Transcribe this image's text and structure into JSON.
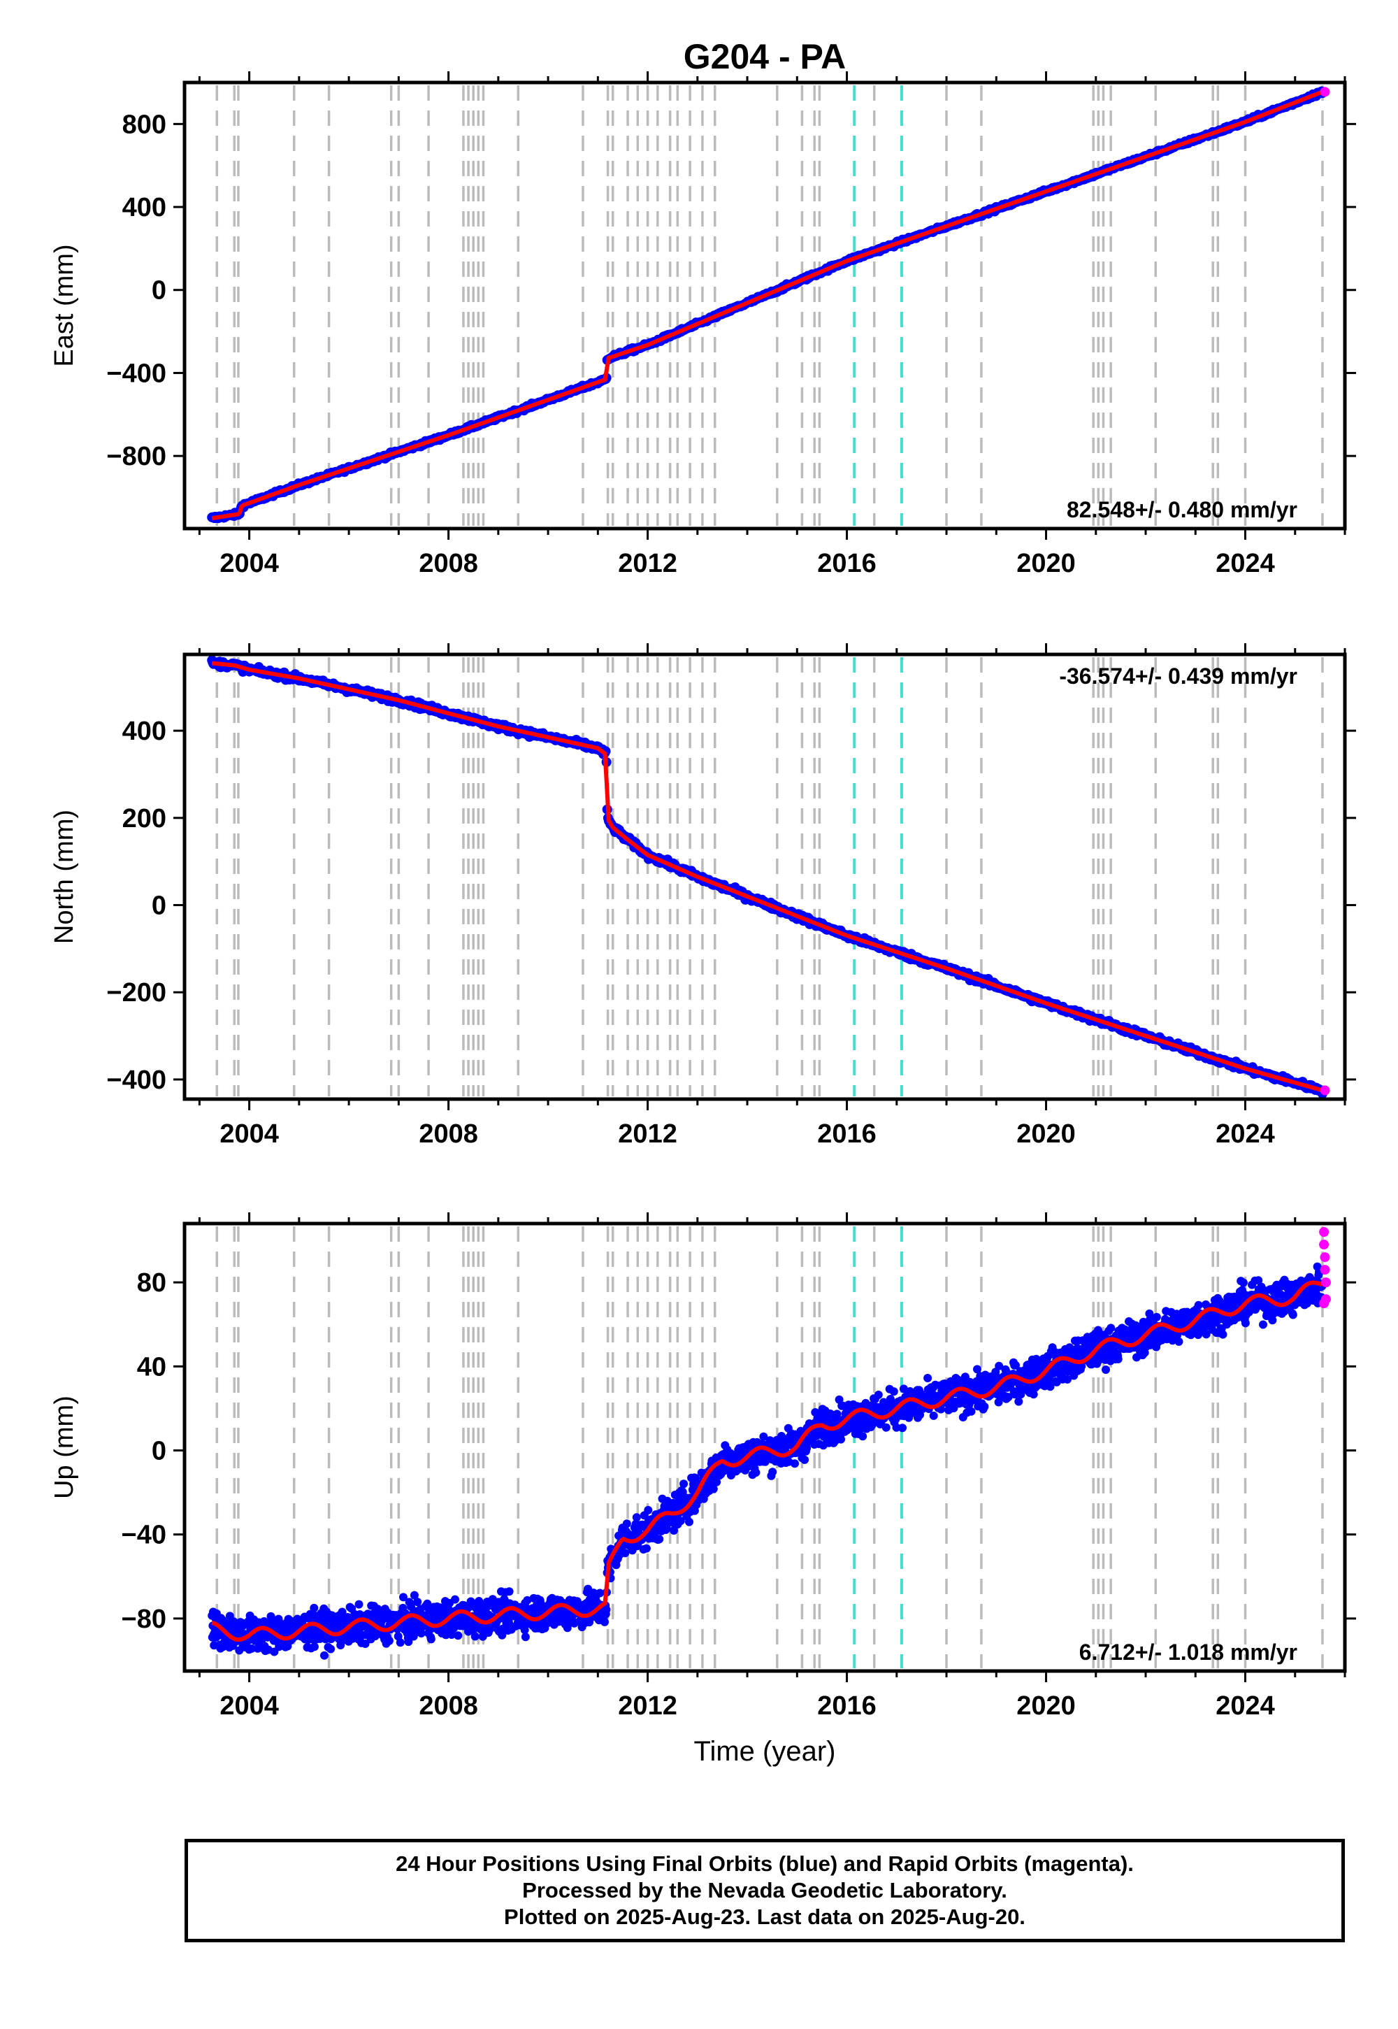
{
  "figure": {
    "title": "G204 - PA",
    "xlabel": "Time (year)",
    "footer": [
      "24 Hour Positions Using Final Orbits (blue) and Rapid Orbits (magenta).",
      "Processed by the Nevada Geodetic Laboratory.",
      "Plotted on 2025-Aug-23. Last data on 2025-Aug-20."
    ]
  },
  "colors": {
    "final_orbit_points": "#0000ff",
    "rapid_orbit_points": "#ff00ff",
    "model_line": "#ff0000",
    "equipment_change_lines": "#bbbbbb",
    "earthquake_lines": "#40e0d0"
  },
  "chart_data": [
    {
      "type": "scatter",
      "ylabel": "East (mm)",
      "xlim": [
        2002.7,
        2026.0
      ],
      "ylim": [
        -1150,
        1000
      ],
      "xticks": [
        2004,
        2008,
        2012,
        2016,
        2020,
        2024
      ],
      "yticks": [
        -800,
        -400,
        0,
        400,
        800
      ],
      "rate_label": "82.548+/- 0.480 mm/yr",
      "rate_position": "bottom-right",
      "grid": false,
      "series": [
        {
          "values_x": [
            2003.25,
            2003.8,
            2003.85,
            2005.0,
            2008.0,
            2011.17,
            2011.19,
            2012.0,
            2016.0,
            2020.0,
            2024.0,
            2025.55
          ],
          "values_y": [
            -1100,
            -1080,
            -1040,
            -940,
            -700,
            -430,
            -330,
            -265,
            140,
            475,
            810,
            955
          ]
        }
      ],
      "rapid_points": [
        [
          2025.6,
          955
        ]
      ],
      "spread_mm": 6,
      "equipment_change_years": [
        2003.35,
        2003.7,
        2003.78,
        2004.9,
        2005.6,
        2006.85,
        2007.0,
        2007.6,
        2008.3,
        2008.4,
        2008.5,
        2008.6,
        2008.7,
        2009.4,
        2010.7,
        2011.2,
        2011.3,
        2011.6,
        2011.8,
        2012.0,
        2012.2,
        2012.45,
        2012.6,
        2012.85,
        2013.1,
        2013.35,
        2014.6,
        2015.1,
        2015.35,
        2015.45,
        2016.55,
        2018.0,
        2018.7,
        2020.95,
        2021.05,
        2021.15,
        2021.3,
        2022.2,
        2023.35,
        2023.45,
        2024.0,
        2025.55
      ],
      "earthquake_years": [
        2016.15,
        2017.1
      ]
    },
    {
      "type": "scatter",
      "ylabel": "North (mm)",
      "xlim": [
        2002.7,
        2026.0
      ],
      "ylim": [
        -445,
        575
      ],
      "xticks": [
        2004,
        2008,
        2012,
        2016,
        2020,
        2024
      ],
      "yticks": [
        -400,
        -200,
        0,
        200,
        400
      ],
      "rate_label": "-36.574+/- 0.439 mm/yr",
      "rate_position": "top-right",
      "grid": false,
      "series": [
        {
          "values_x": [
            2003.25,
            2003.7,
            2004.0,
            2005.0,
            2006.0,
            2007.0,
            2008.0,
            2009.0,
            2010.0,
            2011.0,
            2011.17,
            2011.19,
            2011.3,
            2011.6,
            2012.0,
            2013.0,
            2014.0,
            2016.0,
            2018.0,
            2020.0,
            2022.0,
            2024.0,
            2025.55
          ],
          "values_y": [
            555,
            550,
            540,
            520,
            495,
            470,
            440,
            410,
            385,
            360,
            345,
            200,
            178,
            150,
            115,
            65,
            20,
            -70,
            -145,
            -225,
            -300,
            -375,
            -425
          ]
        }
      ],
      "rapid_points": [
        [
          2025.6,
          -425
        ]
      ],
      "spread_mm": 5,
      "equipment_change_years": [
        2003.35,
        2003.7,
        2003.78,
        2004.9,
        2005.6,
        2006.85,
        2007.0,
        2007.6,
        2008.3,
        2008.4,
        2008.5,
        2008.6,
        2008.7,
        2009.4,
        2010.7,
        2011.2,
        2011.3,
        2011.6,
        2011.8,
        2012.0,
        2012.2,
        2012.45,
        2012.6,
        2012.85,
        2013.1,
        2013.35,
        2014.6,
        2015.1,
        2015.35,
        2015.45,
        2016.55,
        2018.0,
        2018.7,
        2020.95,
        2021.05,
        2021.15,
        2021.3,
        2022.2,
        2023.35,
        2023.45,
        2024.0,
        2025.55
      ],
      "earthquake_years": [
        2016.15,
        2017.1
      ]
    },
    {
      "type": "scatter",
      "ylabel": "Up (mm)",
      "xlim": [
        2002.7,
        2026.0
      ],
      "ylim": [
        -105,
        108
      ],
      "xticks": [
        2004,
        2008,
        2012,
        2016,
        2020,
        2024
      ],
      "yticks": [
        -80,
        -40,
        0,
        40,
        80
      ],
      "rate_label": "6.712+/- 1.018 mm/yr",
      "rate_position": "bottom-right",
      "grid": false,
      "series": [
        {
          "values_x": [
            2003.25,
            2004.0,
            2006.0,
            2008.0,
            2010.0,
            2011.17,
            2011.19,
            2011.5,
            2012.0,
            2012.5,
            2013.0,
            2013.5,
            2014.0,
            2015.0,
            2015.5,
            2016.0,
            2017.0,
            2018.0,
            2019.0,
            2020.0,
            2021.0,
            2022.0,
            2023.0,
            2024.0,
            2025.0,
            2025.55
          ],
          "values_y": [
            -85,
            -88,
            -84,
            -80,
            -77,
            -75,
            -58,
            -42,
            -38,
            -30,
            -20,
            -5,
            -3,
            2,
            12,
            15,
            20,
            25,
            30,
            38,
            48,
            55,
            62,
            70,
            73,
            80
          ]
        }
      ],
      "rapid_points": [
        [
          2025.58,
          104
        ],
        [
          2025.58,
          98
        ],
        [
          2025.6,
          92
        ],
        [
          2025.6,
          86
        ],
        [
          2025.62,
          80
        ],
        [
          2025.62,
          72
        ],
        [
          2025.58,
          70
        ]
      ],
      "spread_mm": 6,
      "equipment_change_years": [
        2003.35,
        2003.7,
        2003.78,
        2004.9,
        2005.6,
        2006.85,
        2007.0,
        2007.6,
        2008.3,
        2008.4,
        2008.5,
        2008.6,
        2008.7,
        2009.4,
        2010.7,
        2011.2,
        2011.3,
        2011.6,
        2011.8,
        2012.0,
        2012.2,
        2012.45,
        2012.6,
        2012.85,
        2013.1,
        2013.35,
        2014.6,
        2015.1,
        2015.35,
        2015.45,
        2016.55,
        2018.0,
        2018.7,
        2020.95,
        2021.05,
        2021.15,
        2021.3,
        2022.2,
        2023.35,
        2023.45,
        2024.0,
        2025.55
      ],
      "earthquake_years": [
        2016.15,
        2017.1
      ]
    }
  ]
}
